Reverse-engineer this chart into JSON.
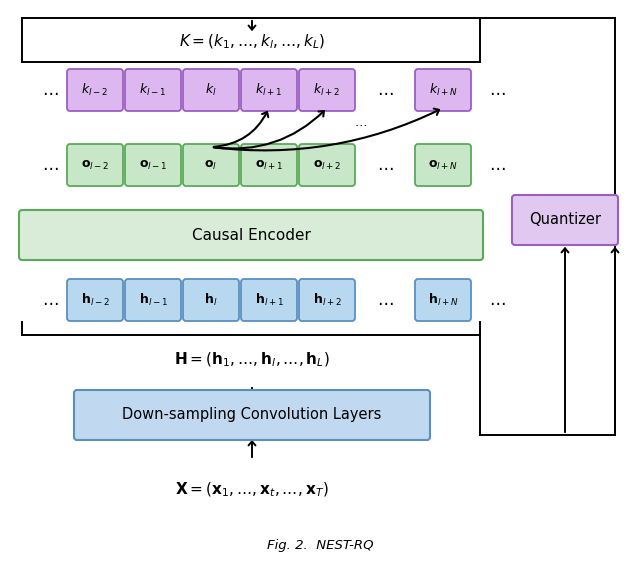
{
  "fig_width": 6.4,
  "fig_height": 5.83,
  "bg_color": "#ffffff",
  "purple_fill": "#ddb8f0",
  "purple_edge": "#9b5fc0",
  "green_fill": "#c8e6c8",
  "green_edge": "#5aaa5a",
  "blue_fill": "#b8d8f0",
  "blue_edge": "#5a8fc0",
  "encoder_fill": "#d8ecd8",
  "encoder_edge": "#5aaa5a",
  "quantizer_fill": "#e0c8f0",
  "quantizer_edge": "#9b5fc0",
  "conv_fill": "#c0d8f0",
  "conv_edge": "#5a8fc0",
  "k_labels": [
    "$k_{l-2}$",
    "$k_{l-1}$",
    "$k_l$",
    "$k_{l+1}$",
    "$k_{l+2}$",
    "$k_{l+N}$"
  ],
  "o_labels": [
    "$\\mathbf{o}_{l-2}$",
    "$\\mathbf{o}_{l-1}$",
    "$\\mathbf{o}_l$",
    "$\\mathbf{o}_{l+1}$",
    "$\\mathbf{o}_{l+2}$",
    "$\\mathbf{o}_{l+N}$"
  ],
  "h_labels": [
    "$\\mathbf{h}_{l-2}$",
    "$\\mathbf{h}_{l-1}$",
    "$\\mathbf{h}_l$",
    "$\\mathbf{h}_{l+1}$",
    "$\\mathbf{h}_{l+2}$",
    "$\\mathbf{h}_{l+N}$"
  ],
  "K_eq": "$K = (k_1, \\ldots, k_l, \\ldots, k_L)$",
  "H_eq": "$\\mathbf{H} = (\\mathbf{h}_1, \\ldots, \\mathbf{h}_l, \\ldots, \\mathbf{h}_L)$",
  "X_eq": "$\\mathbf{X} = (\\mathbf{x}_1, \\ldots, \\mathbf{x}_t, \\ldots, \\mathbf{x}_T)$",
  "caption": "Fig. 2.  NEST-RQ"
}
